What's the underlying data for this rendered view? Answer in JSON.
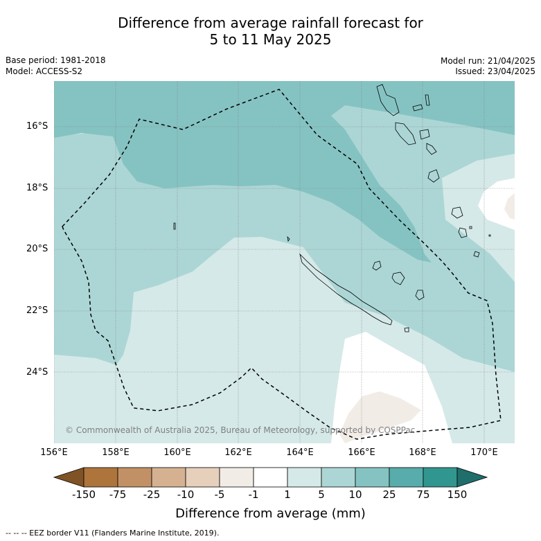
{
  "title": {
    "line1": "Difference from average rainfall forecast for",
    "line2": "5 to 11 May 2025"
  },
  "meta": {
    "base_period": "Base period: 1981-2018",
    "model": "Model: ACCESS-S2",
    "model_run": "Model run: 21/04/2025",
    "issued": "Issued: 23/04/2025"
  },
  "map": {
    "lat_labels": [
      "16°S",
      "18°S",
      "20°S",
      "22°S",
      "24°S"
    ],
    "lon_labels": [
      "156°E",
      "158°E",
      "160°E",
      "162°E",
      "164°E",
      "166°E",
      "168°E",
      "170°E"
    ],
    "copyright": "© Commonwealth of Australia 2025, Bureau of Meteorology, supported by COSPPac",
    "colors": {
      "ocean_base": "#d5e9e8",
      "light_teal": "#acd6d5",
      "mid_teal": "#85c3c2",
      "white": "#ffffff",
      "light_brown": "#f2ece7"
    }
  },
  "colorbar": {
    "labels": [
      "-150",
      "-75",
      "-25",
      "-10",
      "-5",
      "-1",
      "1",
      "5",
      "10",
      "25",
      "75",
      "150"
    ],
    "colors": [
      "#7f5326",
      "#ad743c",
      "#c19165",
      "#d5b191",
      "#e6cfbb",
      "#f2ece7",
      "#ffffff",
      "#d5e9e8",
      "#acd6d5",
      "#85c3c2",
      "#58adac",
      "#31968f",
      "#1f6e6b"
    ],
    "title": "Difference from average (mm)"
  },
  "footer": "--  --  -- EEZ border V11 (Flanders Marine Institute, 2019)."
}
